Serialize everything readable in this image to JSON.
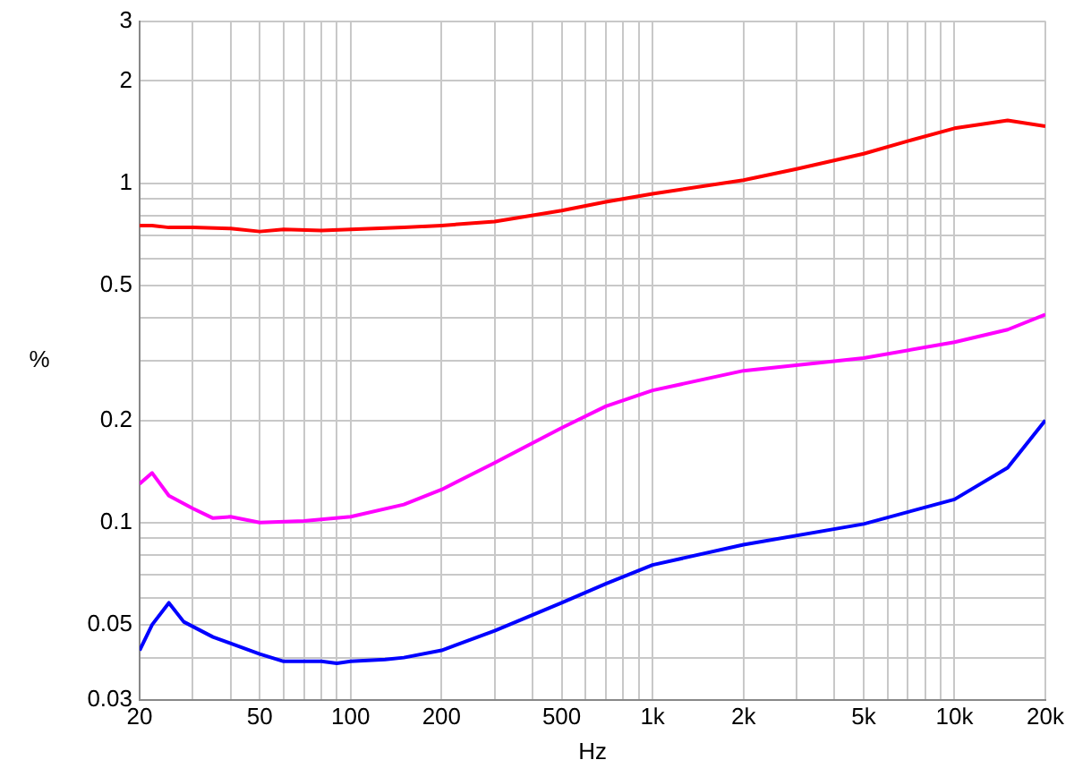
{
  "chart_data": {
    "type": "line",
    "xlabel": "Hz",
    "ylabel": "%",
    "log": "xy",
    "xlim": [
      20,
      20000
    ],
    "ylim": [
      0.03,
      3
    ],
    "xticks": [
      20,
      {
        "value": 30,
        "label": null
      },
      {
        "value": 40,
        "label": null
      },
      50,
      {
        "value": 60,
        "label": null
      },
      {
        "value": 70,
        "label": null
      },
      {
        "value": 80,
        "label": null
      },
      {
        "value": 90,
        "label": null
      },
      100,
      200,
      {
        "value": 300,
        "label": null
      },
      {
        "value": 400,
        "label": null
      },
      500,
      {
        "value": 600,
        "label": null
      },
      {
        "value": 700,
        "label": null
      },
      {
        "value": 800,
        "label": null
      },
      {
        "value": 900,
        "label": null
      },
      {
        "value": 1000,
        "label": "1k"
      },
      {
        "value": 2000,
        "label": "2k"
      },
      {
        "value": 3000,
        "label": null
      },
      {
        "value": 4000,
        "label": null
      },
      {
        "value": 5000,
        "label": "5k"
      },
      {
        "value": 6000,
        "label": null
      },
      {
        "value": 7000,
        "label": null
      },
      {
        "value": 8000,
        "label": null
      },
      {
        "value": 9000,
        "label": null
      },
      {
        "value": 10000,
        "label": "10k"
      },
      {
        "value": 20000,
        "label": "20k"
      }
    ],
    "yticks": [
      0.03,
      {
        "value": 0.04,
        "label": null
      },
      0.05,
      {
        "value": 0.06,
        "label": null
      },
      {
        "value": 0.07,
        "label": null
      },
      {
        "value": 0.08,
        "label": null
      },
      {
        "value": 0.09,
        "label": null
      },
      0.1,
      0.2,
      {
        "value": 0.3,
        "label": null
      },
      {
        "value": 0.4,
        "label": null
      },
      0.5,
      {
        "value": 0.6,
        "label": null
      },
      {
        "value": 0.7,
        "label": null
      },
      {
        "value": 0.8,
        "label": null
      },
      {
        "value": 0.9,
        "label": null
      },
      1,
      2,
      3
    ],
    "grid": true,
    "legend": false,
    "marker": "none",
    "line_style": "solid",
    "series": [
      {
        "color": "#ff0000",
        "x": [
          20,
          22,
          25,
          30,
          40,
          50,
          60,
          80,
          100,
          150,
          200,
          300,
          500,
          700,
          1000,
          2000,
          3000,
          5000,
          7000,
          10000,
          15000,
          20000
        ],
        "values": [
          0.75,
          0.75,
          0.74,
          0.74,
          0.735,
          0.72,
          0.73,
          0.725,
          0.73,
          0.74,
          0.75,
          0.77,
          0.83,
          0.88,
          0.93,
          1.02,
          1.1,
          1.22,
          1.33,
          1.45,
          1.53,
          1.47
        ]
      },
      {
        "color": "#ff00ff",
        "x": [
          20,
          22,
          25,
          30,
          35,
          40,
          50,
          70,
          100,
          150,
          200,
          300,
          500,
          700,
          1000,
          2000,
          5000,
          10000,
          15000,
          20000
        ],
        "values": [
          0.13,
          0.14,
          0.12,
          0.11,
          0.103,
          0.104,
          0.1,
          0.101,
          0.104,
          0.113,
          0.125,
          0.15,
          0.19,
          0.22,
          0.245,
          0.28,
          0.305,
          0.34,
          0.37,
          0.41
        ]
      },
      {
        "color": "#0000ff",
        "x": [
          20,
          22,
          25,
          28,
          35,
          50,
          60,
          80,
          90,
          100,
          130,
          150,
          200,
          300,
          500,
          700,
          1000,
          2000,
          5000,
          10000,
          15000,
          20000
        ],
        "values": [
          0.042,
          0.05,
          0.058,
          0.051,
          0.046,
          0.041,
          0.039,
          0.039,
          0.0385,
          0.039,
          0.0395,
          0.04,
          0.042,
          0.048,
          0.058,
          0.066,
          0.075,
          0.086,
          0.099,
          0.117,
          0.145,
          0.2
        ]
      }
    ]
  }
}
